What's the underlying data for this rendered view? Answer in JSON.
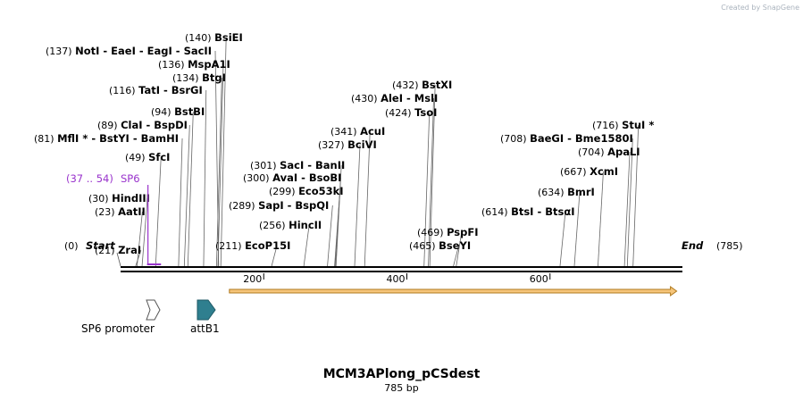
{
  "watermark": "Created by SnapGene",
  "sequence": {
    "name": "MCM3APlong_pCSdest",
    "length_label": "785 bp",
    "length": 785
  },
  "ends": {
    "start": "Start",
    "end": "End",
    "start_pos": "(0)",
    "end_pos": "(785)"
  },
  "ruler": {
    "ticks": [
      200,
      400,
      600
    ]
  },
  "colors": {
    "primer": "#9933cc",
    "orf_fill": "#f6c57a",
    "orf_stroke": "#b07a1f",
    "attb1": "#2f7f8f",
    "backbone": "#000000"
  },
  "primer": {
    "label": "SP6",
    "range": "(37 .. 54)",
    "start": 37,
    "end": 54
  },
  "features": [
    {
      "label": "SP6 promoter",
      "start": 37,
      "end": 54,
      "shape": "white-arrow"
    },
    {
      "label": "attB1",
      "start": 106,
      "end": 130,
      "shape": "teal-arrow"
    }
  ],
  "orf": {
    "start": 152,
    "end": 777,
    "direction": "forward"
  },
  "sites": [
    {
      "pos": "(21)",
      "names": [
        "ZraI"
      ],
      "site": 21
    },
    {
      "pos": "(23)",
      "names": [
        "AatII"
      ],
      "site": 23
    },
    {
      "pos": "(30)",
      "names": [
        "HindIII"
      ],
      "site": 30
    },
    {
      "pos": "(49)",
      "names": [
        "SfcI"
      ],
      "site": 49
    },
    {
      "pos": "(81)",
      "names": [
        "MflI *",
        "BstYI",
        "BamHI"
      ],
      "site": 81
    },
    {
      "pos": "(89)",
      "names": [
        "ClaI",
        "BspDI"
      ],
      "site": 89
    },
    {
      "pos": "(94)",
      "names": [
        "BstBI"
      ],
      "site": 94
    },
    {
      "pos": "(116)",
      "names": [
        "TatI",
        "BsrGI"
      ],
      "site": 116
    },
    {
      "pos": "(134)",
      "names": [
        "BtgI"
      ],
      "site": 134
    },
    {
      "pos": "(136)",
      "names": [
        "MspA1I"
      ],
      "site": 136
    },
    {
      "pos": "(137)",
      "names": [
        "NotI",
        "EaeI",
        "EagI",
        "SacII"
      ],
      "site": 137
    },
    {
      "pos": "(140)",
      "names": [
        "BsiEI"
      ],
      "site": 140
    },
    {
      "pos": "(211)",
      "names": [
        "EcoP15I"
      ],
      "site": 211
    },
    {
      "pos": "(256)",
      "names": [
        "HincII"
      ],
      "site": 256
    },
    {
      "pos": "(289)",
      "names": [
        "SapI",
        "BspQI"
      ],
      "site": 289
    },
    {
      "pos": "(299)",
      "names": [
        "Eco53kI"
      ],
      "site": 299
    },
    {
      "pos": "(300)",
      "names": [
        "AvaI",
        "BsoBI"
      ],
      "site": 300
    },
    {
      "pos": "(301)",
      "names": [
        "SacI",
        "BanII"
      ],
      "site": 301
    },
    {
      "pos": "(327)",
      "names": [
        "BciVI"
      ],
      "site": 327
    },
    {
      "pos": "(341)",
      "names": [
        "AcuI"
      ],
      "site": 341
    },
    {
      "pos": "(424)",
      "names": [
        "TsoI"
      ],
      "site": 424
    },
    {
      "pos": "(430)",
      "names": [
        "AleI",
        "MslI"
      ],
      "site": 430
    },
    {
      "pos": "(432)",
      "names": [
        "BstXI"
      ],
      "site": 432
    },
    {
      "pos": "(465)",
      "names": [
        "BseYI"
      ],
      "site": 465
    },
    {
      "pos": "(469)",
      "names": [
        "PspFI"
      ],
      "site": 469
    },
    {
      "pos": "(614)",
      "names": [
        "BtsI",
        "BtsαI"
      ],
      "site": 614
    },
    {
      "pos": "(634)",
      "names": [
        "BmrI"
      ],
      "site": 634
    },
    {
      "pos": "(667)",
      "names": [
        "XcmI"
      ],
      "site": 667
    },
    {
      "pos": "(704)",
      "names": [
        "ApaLI"
      ],
      "site": 704
    },
    {
      "pos": "(708)",
      "names": [
        "BaeGI",
        "Bme1580I"
      ],
      "site": 708
    },
    {
      "pos": "(716)",
      "names": [
        "StuI *"
      ],
      "site": 716
    }
  ]
}
